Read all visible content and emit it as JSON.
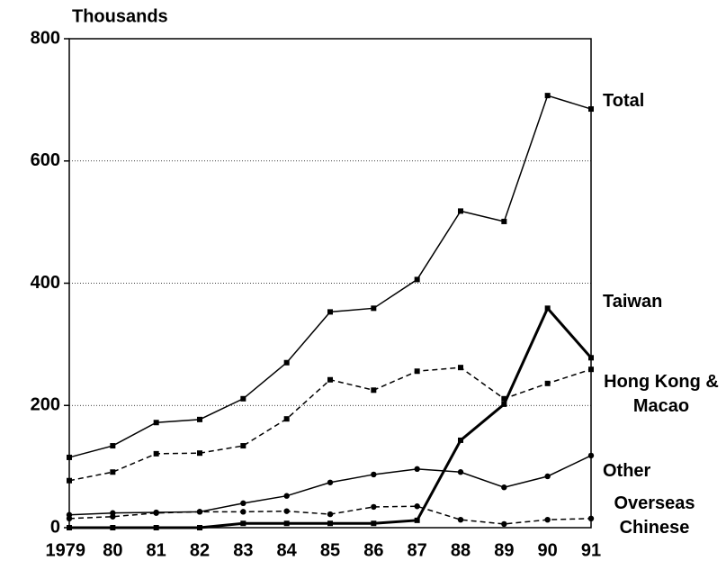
{
  "chart_data": {
    "type": "line",
    "y_axis_label": "Thousands",
    "categories": [
      "1979",
      "80",
      "81",
      "82",
      "83",
      "84",
      "85",
      "86",
      "87",
      "88",
      "89",
      "90",
      "91"
    ],
    "ylim": [
      0,
      800
    ],
    "yticks": [
      0,
      200,
      400,
      600,
      800
    ],
    "grid": true,
    "series": [
      {
        "name": "Total",
        "color": "#000000",
        "style": "solid",
        "marker": "square",
        "values": [
          115,
          134,
          172,
          177,
          211,
          270,
          353,
          359,
          406,
          518,
          501,
          707,
          685
        ]
      },
      {
        "name": "Taiwan",
        "color": "#000000",
        "style": "bold",
        "marker": "square",
        "values": [
          0,
          0,
          0,
          0,
          7,
          7,
          7,
          7,
          12,
          143,
          202,
          359,
          278
        ]
      },
      {
        "name": "Hong Kong & Macao",
        "color": "#000000",
        "style": "dashed",
        "marker": "square",
        "values": [
          77,
          91,
          121,
          122,
          134,
          178,
          242,
          225,
          256,
          262,
          211,
          236,
          259
        ]
      },
      {
        "name": "Other",
        "color": "#000000",
        "style": "solid",
        "marker": "circle",
        "values": [
          21,
          24,
          25,
          26,
          40,
          52,
          74,
          87,
          96,
          91,
          66,
          84,
          118
        ]
      },
      {
        "name": "Overseas Chinese",
        "color": "#000000",
        "style": "dashed",
        "marker": "circle",
        "values": [
          15,
          18,
          24,
          26,
          26,
          27,
          22,
          34,
          35,
          13,
          6,
          13,
          15
        ]
      }
    ]
  }
}
